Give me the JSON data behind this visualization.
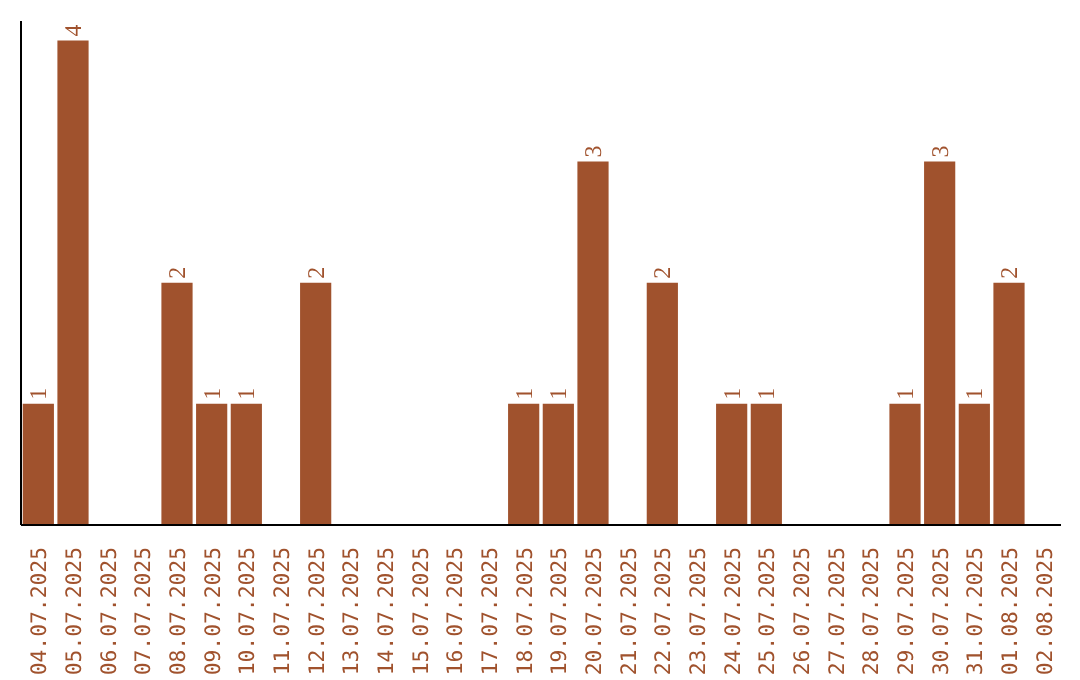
{
  "chart_data": {
    "type": "bar",
    "categories": [
      "04.07.2025",
      "05.07.2025",
      "06.07.2025",
      "07.07.2025",
      "08.07.2025",
      "09.07.2025",
      "10.07.2025",
      "11.07.2025",
      "12.07.2025",
      "13.07.2025",
      "14.07.2025",
      "15.07.2025",
      "16.07.2025",
      "17.07.2025",
      "18.07.2025",
      "19.07.2025",
      "20.07.2025",
      "21.07.2025",
      "22.07.2025",
      "23.07.2025",
      "24.07.2025",
      "25.07.2025",
      "26.07.2025",
      "27.07.2025",
      "28.07.2025",
      "29.07.2025",
      "30.07.2025",
      "31.07.2025",
      "01.08.2025",
      "02.08.2025"
    ],
    "values": [
      1,
      4,
      0,
      0,
      2,
      1,
      1,
      0,
      2,
      0,
      0,
      0,
      0,
      0,
      1,
      1,
      3,
      0,
      2,
      0,
      1,
      1,
      0,
      0,
      0,
      1,
      3,
      1,
      2,
      0
    ],
    "value_labels": [
      "1",
      "4",
      null,
      null,
      "2",
      "1",
      "1",
      null,
      "2",
      null,
      null,
      null,
      null,
      null,
      "1",
      "1",
      "3",
      null,
      "2",
      null,
      "1",
      "1",
      null,
      null,
      null,
      "1",
      "3",
      "1",
      "2",
      null
    ],
    "color": "#a0522d",
    "grid": false,
    "tick_labels": "x"
  }
}
